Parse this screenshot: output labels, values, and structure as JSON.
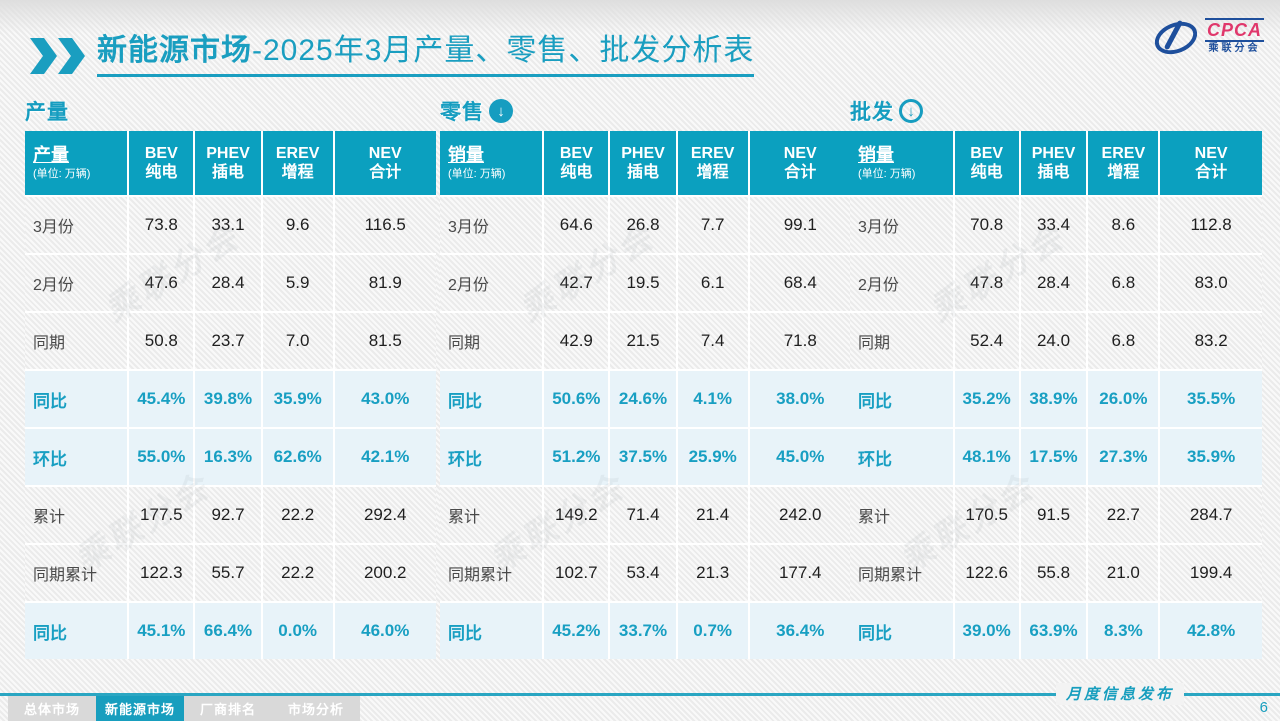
{
  "title": {
    "bold": "新能源市场",
    "rest": "-2025年3月产量、零售、批发分析表"
  },
  "logo": {
    "name": "CPCA",
    "subtitle": "乘联分会",
    "icon": "cpca-swoosh-icon"
  },
  "watermark": "乘联分会",
  "colors": {
    "accent": "#169DC0",
    "header_bg": "#0BA0BF",
    "pct_row_bg": "#E8F3F9",
    "pct_text": "#189FC2",
    "logo_red": "#E0376B",
    "logo_navy": "#1E4F9C"
  },
  "tables": [
    {
      "section_label": "产量",
      "badge": "none",
      "badge_icon": "",
      "first_header": "产量",
      "unit": "(单位: 万辆)",
      "columns": [
        [
          "BEV",
          "纯电"
        ],
        [
          "PHEV",
          "插电"
        ],
        [
          "EREV",
          "增程"
        ],
        [
          "NEV",
          "合计"
        ]
      ],
      "rows": [
        {
          "label": "3月份",
          "type": "data",
          "values": [
            "73.8",
            "33.1",
            "9.6",
            "116.5"
          ]
        },
        {
          "label": "2月份",
          "type": "data",
          "values": [
            "47.6",
            "28.4",
            "5.9",
            "81.9"
          ]
        },
        {
          "label": "同期",
          "type": "data",
          "values": [
            "50.8",
            "23.7",
            "7.0",
            "81.5"
          ]
        },
        {
          "label": "同比",
          "type": "pct",
          "values": [
            "45.4%",
            "39.8%",
            "35.9%",
            "43.0%"
          ]
        },
        {
          "label": "环比",
          "type": "pct",
          "values": [
            "55.0%",
            "16.3%",
            "62.6%",
            "42.1%"
          ]
        },
        {
          "label": "累计",
          "type": "data",
          "values": [
            "177.5",
            "92.7",
            "22.2",
            "292.4"
          ]
        },
        {
          "label": "同期累计",
          "type": "data",
          "values": [
            "122.3",
            "55.7",
            "22.2",
            "200.2"
          ]
        },
        {
          "label": "同比",
          "type": "pct",
          "values": [
            "45.1%",
            "66.4%",
            "0.0%",
            "46.0%"
          ]
        }
      ]
    },
    {
      "section_label": "零售",
      "badge": "filled",
      "badge_icon": "down-arrow",
      "first_header": "销量",
      "unit": "(单位: 万辆)",
      "columns": [
        [
          "BEV",
          "纯电"
        ],
        [
          "PHEV",
          "插电"
        ],
        [
          "EREV",
          "增程"
        ],
        [
          "NEV",
          "合计"
        ]
      ],
      "rows": [
        {
          "label": "3月份",
          "type": "data",
          "values": [
            "64.6",
            "26.8",
            "7.7",
            "99.1"
          ]
        },
        {
          "label": "2月份",
          "type": "data",
          "values": [
            "42.7",
            "19.5",
            "6.1",
            "68.4"
          ]
        },
        {
          "label": "同期",
          "type": "data",
          "values": [
            "42.9",
            "21.5",
            "7.4",
            "71.8"
          ]
        },
        {
          "label": "同比",
          "type": "pct",
          "values": [
            "50.6%",
            "24.6%",
            "4.1%",
            "38.0%"
          ]
        },
        {
          "label": "环比",
          "type": "pct",
          "values": [
            "51.2%",
            "37.5%",
            "25.9%",
            "45.0%"
          ]
        },
        {
          "label": "累计",
          "type": "data",
          "values": [
            "149.2",
            "71.4",
            "21.4",
            "242.0"
          ]
        },
        {
          "label": "同期累计",
          "type": "data",
          "values": [
            "102.7",
            "53.4",
            "21.3",
            "177.4"
          ]
        },
        {
          "label": "同比",
          "type": "pct",
          "values": [
            "45.2%",
            "33.7%",
            "0.7%",
            "36.4%"
          ]
        }
      ]
    },
    {
      "section_label": "批发",
      "badge": "ring",
      "badge_icon": "down-arrow",
      "first_header": "销量",
      "unit": "(单位: 万辆)",
      "columns": [
        [
          "BEV",
          "纯电"
        ],
        [
          "PHEV",
          "插电"
        ],
        [
          "EREV",
          "增程"
        ],
        [
          "NEV",
          "合计"
        ]
      ],
      "rows": [
        {
          "label": "3月份",
          "type": "data",
          "values": [
            "70.8",
            "33.4",
            "8.6",
            "112.8"
          ]
        },
        {
          "label": "2月份",
          "type": "data",
          "values": [
            "47.8",
            "28.4",
            "6.8",
            "83.0"
          ]
        },
        {
          "label": "同期",
          "type": "data",
          "values": [
            "52.4",
            "24.0",
            "6.8",
            "83.2"
          ]
        },
        {
          "label": "同比",
          "type": "pct",
          "values": [
            "35.2%",
            "38.9%",
            "26.0%",
            "35.5%"
          ]
        },
        {
          "label": "环比",
          "type": "pct",
          "values": [
            "48.1%",
            "17.5%",
            "27.3%",
            "35.9%"
          ]
        },
        {
          "label": "累计",
          "type": "data",
          "values": [
            "170.5",
            "91.5",
            "22.7",
            "284.7"
          ]
        },
        {
          "label": "同期累计",
          "type": "data",
          "values": [
            "122.6",
            "55.8",
            "21.0",
            "199.4"
          ]
        },
        {
          "label": "同比",
          "type": "pct",
          "values": [
            "39.0%",
            "63.9%",
            "8.3%",
            "42.8%"
          ]
        }
      ]
    }
  ],
  "nav": {
    "tabs": [
      {
        "label": "总体市场",
        "active": false
      },
      {
        "label": "新能源市场",
        "active": true
      },
      {
        "label": "厂商排名",
        "active": false
      },
      {
        "label": "市场分析",
        "active": false
      }
    ]
  },
  "footer": {
    "publish_label": "月度信息发布",
    "page_number": "6"
  }
}
